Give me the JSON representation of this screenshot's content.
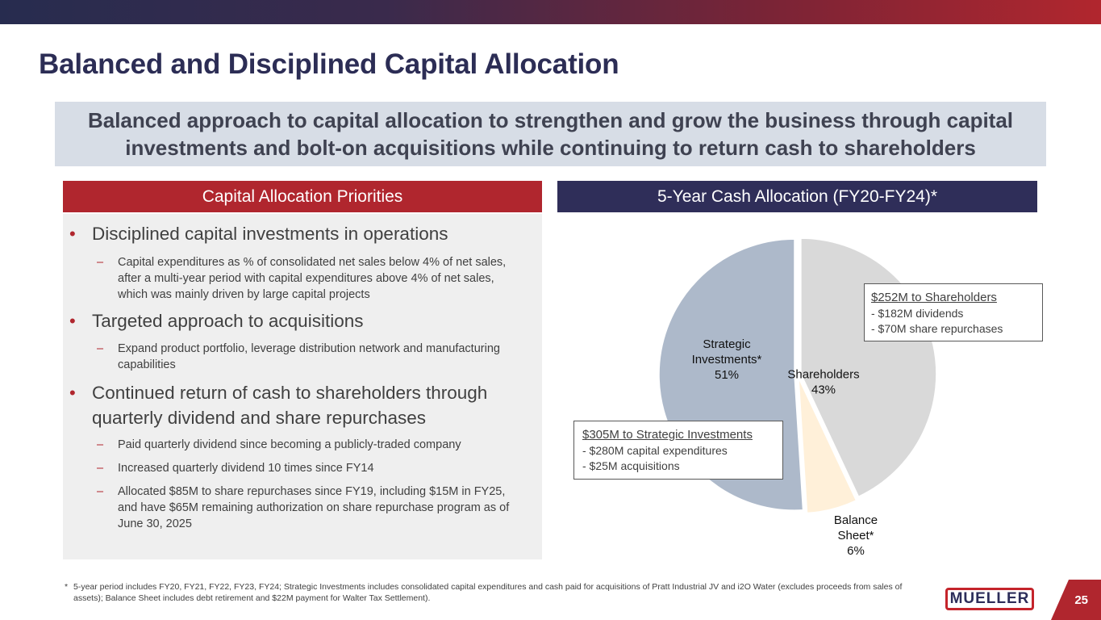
{
  "page": {
    "title": "Balanced and Disciplined Capital Allocation",
    "banner": "Balanced approach to capital allocation to strengthen and grow the business through capital investments and bolt-on acquisitions while continuing to return cash to shareholders",
    "page_number": "25"
  },
  "left_section": {
    "header": "Capital Allocation Priorities",
    "bullets": [
      {
        "text": "Disciplined capital investments in operations",
        "subs": [
          "Capital expenditures as % of consolidated net sales below 4% of net sales, after a multi-year period with capital expenditures above 4% of net sales, which was mainly driven by large capital projects"
        ]
      },
      {
        "text": "Targeted approach to acquisitions",
        "subs": [
          "Expand product portfolio, leverage distribution network and manufacturing capabilities"
        ]
      },
      {
        "text": "Continued return of cash to shareholders through quarterly dividend and share repurchases",
        "subs": [
          "Paid quarterly dividend since becoming a publicly-traded company",
          "Increased quarterly dividend 10 times since FY14",
          "Allocated $85M to share repurchases since FY19, including $15M in FY25, and have $65M remaining authorization on share repurchase program as of June 30, 2025"
        ]
      }
    ],
    "bullet_char": "•",
    "dash_char": "–"
  },
  "right_section": {
    "header": "5-Year Cash Allocation (FY20-FY24)*",
    "callouts": {
      "shareholders": {
        "heading": "$252M to Shareholders",
        "lines": [
          "- $182M dividends",
          "- $70M share repurchases"
        ]
      },
      "strategic": {
        "heading": "$305M to Strategic Investments",
        "lines": [
          "- $280M capital expenditures",
          "- $25M acquisitions"
        ]
      }
    }
  },
  "chart_data": {
    "type": "pie",
    "title": "5-Year Cash Allocation (FY20-FY24)*",
    "slices": [
      {
        "label": "Shareholders",
        "value": 43,
        "color": "#d9d9d9"
      },
      {
        "label": "Balance Sheet*",
        "value": 6,
        "color": "#fff0d9"
      },
      {
        "label": "Strategic Investments*",
        "value": 51,
        "color": "#adb9ca"
      }
    ],
    "slice_labels": [
      {
        "lines": [
          "Shareholders",
          "43%"
        ]
      },
      {
        "lines": [
          "Balance",
          "Sheet*",
          "6%"
        ]
      },
      {
        "lines": [
          "Strategic",
          "Investments*",
          "51%"
        ]
      }
    ],
    "start": "12 o'clock",
    "direction": "clockwise",
    "exploded": true
  },
  "footnote": {
    "marker": "*",
    "text": "5-year period includes FY20, FY21, FY22, FY23, FY24;  Strategic Investments includes consolidated capital expenditures and cash paid for acquisitions of Pratt Industrial JV and i2O Water (excludes proceeds from sales of assets); Balance Sheet includes debt retirement and $22M payment for Walter Tax Settlement)."
  },
  "logo": {
    "text": "MUELLER"
  },
  "colors": {
    "navy": "#2c2d55",
    "red": "#b0262e",
    "banner_bg": "#d7dde6",
    "panel_bg": "#efefef"
  }
}
